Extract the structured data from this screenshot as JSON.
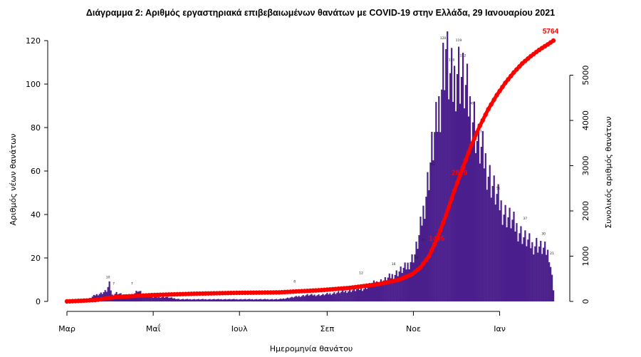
{
  "chart_data": {
    "type": "bar+line",
    "title": "Διάγραμμα 2: Αριθμός εργαστηριακά επιβεβαιωμένων θανάτων με COVID-19 στην Ελλάδα, 29 Ιανουαρίου 2021",
    "xlabel": "Ημερομηνία θανάτου",
    "ylabel_left": "Αριθμός νέων θανάτων",
    "ylabel_right": "Συνολικός αριθμός θανάτων",
    "ylim_left": [
      0,
      120
    ],
    "ylim_right": [
      0,
      5764
    ],
    "yticks_left": [
      0,
      20,
      40,
      60,
      80,
      100,
      120
    ],
    "yticks_right": [
      0,
      1000,
      2000,
      3000,
      4000,
      5000
    ],
    "month_ticks": [
      {
        "label": "Μαρ",
        "day": 0
      },
      {
        "label": "Μαΐ",
        "day": 61
      },
      {
        "label": "Ιουλ",
        "day": 122
      },
      {
        "label": "Σεπ",
        "day": 184
      },
      {
        "label": "Νοε",
        "day": 245
      },
      {
        "label": "Ιαν",
        "day": 306
      }
    ],
    "bar_color": "#4b1f8c",
    "line_color": "#ff0000",
    "day_count": 345,
    "series": [
      {
        "name": "new_deaths",
        "kind": "bar",
        "keypoints": [
          [
            0,
            0
          ],
          [
            10,
            0
          ],
          [
            15,
            1
          ],
          [
            20,
            3
          ],
          [
            25,
            4
          ],
          [
            28,
            5
          ],
          [
            30,
            8
          ],
          [
            32,
            3
          ],
          [
            35,
            4
          ],
          [
            40,
            3
          ],
          [
            45,
            2
          ],
          [
            50,
            5
          ],
          [
            55,
            3
          ],
          [
            60,
            2
          ],
          [
            70,
            2
          ],
          [
            80,
            1
          ],
          [
            90,
            1
          ],
          [
            100,
            1
          ],
          [
            110,
            1
          ],
          [
            120,
            1
          ],
          [
            130,
            1
          ],
          [
            140,
            1
          ],
          [
            150,
            1
          ],
          [
            160,
            2
          ],
          [
            170,
            3
          ],
          [
            180,
            3
          ],
          [
            190,
            4
          ],
          [
            200,
            5
          ],
          [
            210,
            6
          ],
          [
            215,
            8
          ],
          [
            220,
            9
          ],
          [
            225,
            10
          ],
          [
            230,
            12
          ],
          [
            235,
            14
          ],
          [
            240,
            16
          ],
          [
            243,
            19
          ],
          [
            246,
            22
          ],
          [
            249,
            30
          ],
          [
            252,
            42
          ],
          [
            255,
            55
          ],
          [
            258,
            70
          ],
          [
            261,
            80
          ],
          [
            264,
            95
          ],
          [
            266,
            110
          ],
          [
            268,
            118
          ],
          [
            270,
            105
          ],
          [
            273,
            100
          ],
          [
            276,
            110
          ],
          [
            279,
            105
          ],
          [
            282,
            98
          ],
          [
            285,
            90
          ],
          [
            288,
            85
          ],
          [
            290,
            75
          ],
          [
            293,
            70
          ],
          [
            296,
            65
          ],
          [
            299,
            58
          ],
          [
            302,
            52
          ],
          [
            305,
            47
          ],
          [
            308,
            43
          ],
          [
            311,
            40
          ],
          [
            314,
            38
          ],
          [
            317,
            35
          ],
          [
            320,
            33
          ],
          [
            323,
            30
          ],
          [
            326,
            28
          ],
          [
            329,
            26
          ],
          [
            332,
            27
          ],
          [
            335,
            25
          ],
          [
            338,
            24
          ],
          [
            341,
            22
          ],
          [
            344,
            6
          ]
        ]
      },
      {
        "name": "cumulative_deaths",
        "kind": "line",
        "keypoints": [
          [
            0,
            0
          ],
          [
            20,
            30
          ],
          [
            35,
            100
          ],
          [
            60,
            140
          ],
          [
            90,
            170
          ],
          [
            120,
            190
          ],
          [
            150,
            200
          ],
          [
            180,
            250
          ],
          [
            200,
            300
          ],
          [
            220,
            380
          ],
          [
            235,
            480
          ],
          [
            244,
            600
          ],
          [
            250,
            750
          ],
          [
            256,
            1000
          ],
          [
            262,
            1400
          ],
          [
            268,
            1900
          ],
          [
            274,
            2450
          ],
          [
            280,
            2960
          ],
          [
            286,
            3450
          ],
          [
            292,
            3880
          ],
          [
            298,
            4250
          ],
          [
            304,
            4560
          ],
          [
            310,
            4830
          ],
          [
            316,
            5060
          ],
          [
            322,
            5260
          ],
          [
            328,
            5420
          ],
          [
            334,
            5560
          ],
          [
            340,
            5680
          ],
          [
            344,
            5764
          ]
        ]
      }
    ],
    "annotations": [
      {
        "text": "5764",
        "x": 344,
        "y": 5764,
        "color": "#ff0000"
      },
      {
        "text": "2859",
        "x": 279,
        "y": 2859,
        "color": "#ff0000"
      },
      {
        "text": "1405",
        "x": 263,
        "y": 1405,
        "color": "#ff0000"
      }
    ],
    "bar_labels": [
      {
        "text": "10",
        "x": 29,
        "y": 10
      },
      {
        "text": "7",
        "x": 33,
        "y": 7
      },
      {
        "text": "7",
        "x": 46,
        "y": 7
      },
      {
        "text": "8",
        "x": 161,
        "y": 8
      },
      {
        "text": "12",
        "x": 208,
        "y": 12
      },
      {
        "text": "16",
        "x": 231,
        "y": 16
      },
      {
        "text": "19",
        "x": 247,
        "y": 19
      },
      {
        "text": "27",
        "x": 252,
        "y": 27
      },
      {
        "text": "62",
        "x": 259,
        "y": 62
      },
      {
        "text": "120",
        "x": 266,
        "y": 120
      },
      {
        "text": "110",
        "x": 272,
        "y": 110
      },
      {
        "text": "119",
        "x": 277,
        "y": 119
      },
      {
        "text": "112",
        "x": 280,
        "y": 112
      },
      {
        "text": "90",
        "x": 286,
        "y": 90
      },
      {
        "text": "77",
        "x": 292,
        "y": 77
      },
      {
        "text": "51",
        "x": 305,
        "y": 51
      },
      {
        "text": "37",
        "x": 324,
        "y": 37
      },
      {
        "text": "30",
        "x": 337,
        "y": 30
      },
      {
        "text": "21",
        "x": 343,
        "y": 21
      }
    ]
  }
}
